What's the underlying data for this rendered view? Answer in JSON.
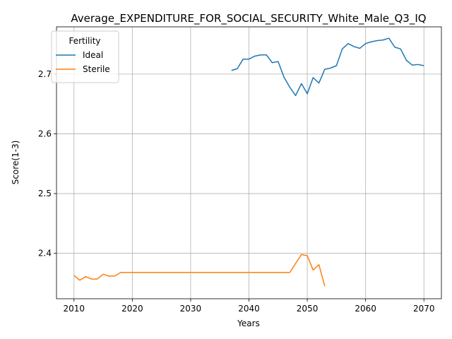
{
  "chart_data": {
    "type": "line",
    "title": "Average_EXPENDITURE_FOR_SOCIAL_SECURITY_White_Male_Q3_IQ",
    "xlabel": "Years",
    "ylabel": "Score(1-3)",
    "xlim": [
      2007,
      2073
    ],
    "ylim": [
      2.324,
      2.779
    ],
    "xticks": [
      2010,
      2020,
      2030,
      2040,
      2050,
      2060,
      2070
    ],
    "yticks": [
      2.4,
      2.5,
      2.6,
      2.7
    ],
    "grid": true,
    "legend": {
      "title": "Fertility",
      "placement": "top-left"
    },
    "series": [
      {
        "name": "Ideal",
        "color": "#1f77b4",
        "x": [
          2037,
          2038,
          2039,
          2040,
          2041,
          2042,
          2043,
          2044,
          2045,
          2046,
          2047,
          2048,
          2049,
          2050,
          2051,
          2052,
          2053,
          2054,
          2055,
          2056,
          2057,
          2058,
          2059,
          2060,
          2061,
          2062,
          2063,
          2064,
          2065,
          2066,
          2067,
          2068,
          2069,
          2070
        ],
        "y": [
          2.706,
          2.709,
          2.725,
          2.725,
          2.73,
          2.732,
          2.732,
          2.719,
          2.721,
          2.695,
          2.678,
          2.664,
          2.684,
          2.667,
          2.694,
          2.685,
          2.708,
          2.71,
          2.714,
          2.742,
          2.751,
          2.746,
          2.743,
          2.751,
          2.754,
          2.756,
          2.757,
          2.76,
          2.745,
          2.742,
          2.723,
          2.715,
          2.716,
          2.714
        ]
      },
      {
        "name": "Sterile",
        "color": "#ff7f0e",
        "x": [
          2010,
          2011,
          2012,
          2013,
          2014,
          2015,
          2016,
          2017,
          2018,
          2019,
          2020,
          2025,
          2030,
          2035,
          2040,
          2045,
          2046,
          2047,
          2048,
          2049,
          2050,
          2051,
          2052,
          2053
        ],
        "y": [
          2.363,
          2.355,
          2.361,
          2.357,
          2.357,
          2.365,
          2.362,
          2.362,
          2.368,
          2.368,
          2.368,
          2.368,
          2.368,
          2.368,
          2.368,
          2.368,
          2.368,
          2.368,
          2.383,
          2.398,
          2.396,
          2.372,
          2.381,
          2.345
        ]
      }
    ]
  }
}
